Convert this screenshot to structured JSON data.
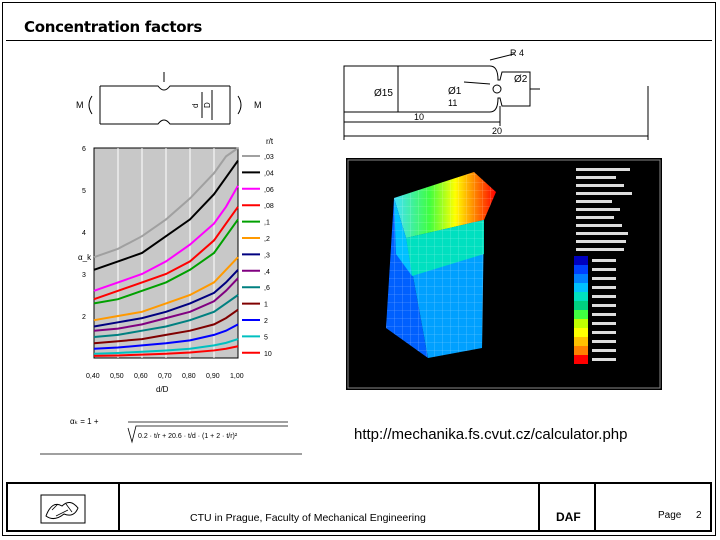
{
  "slide": {
    "title": "Concentration factors",
    "url": "http://mechanika.fs.cvut.cz/calculator.php",
    "footer": {
      "institution": "CTU in Prague, Faculty of Mechanical Engineering",
      "dept": "DAF",
      "page_label": "Page",
      "page_number": "2"
    }
  },
  "shaft_drawing": {
    "labels": {
      "r": "R 4",
      "d2": "Ø2",
      "d15": "Ø15",
      "d11": "Ø1",
      "d11b": "11",
      "dim10": "10",
      "dim20": "20"
    }
  },
  "notch_sketch": {
    "labels": {
      "mleft": "M",
      "mright": "M",
      "d": "d",
      "D": "D"
    }
  },
  "formula_text": {
    "lhs": "αₖ = 1 +",
    "den": "0.2 · t/r + 20.6 · t/d · (1 + 2 · t/r)²"
  },
  "chart_data": {
    "type": "line",
    "xlabel": "d/D",
    "ylabel": "α_k",
    "legend_title": "r/t",
    "xlim": [
      0.4,
      1.0
    ],
    "ylim": [
      1,
      6
    ],
    "x_ticks": [
      "0,40",
      "0,50",
      "0,60",
      "0,70",
      "0,80",
      "0,90",
      "1,00"
    ],
    "y_ticks": [
      "6",
      "5",
      "4",
      "3",
      "2"
    ],
    "x": [
      0.4,
      0.5,
      0.6,
      0.7,
      0.8,
      0.9,
      0.95,
      1.0
    ],
    "series": [
      {
        "name": ",03",
        "color": "#a0a0a0",
        "values": [
          3.4,
          3.6,
          3.9,
          4.3,
          4.8,
          5.4,
          5.8,
          6.0
        ]
      },
      {
        "name": ",04",
        "color": "#000000",
        "values": [
          3.1,
          3.3,
          3.5,
          3.9,
          4.3,
          4.9,
          5.3,
          5.7
        ]
      },
      {
        "name": ",06",
        "color": "#ff00ff",
        "values": [
          2.6,
          2.8,
          3.0,
          3.3,
          3.7,
          4.2,
          4.6,
          5.1
        ]
      },
      {
        "name": ",08",
        "color": "#ff0000",
        "values": [
          2.4,
          2.6,
          2.8,
          3.0,
          3.3,
          3.8,
          4.2,
          4.6
        ]
      },
      {
        "name": ",1",
        "color": "#00a000",
        "values": [
          2.3,
          2.4,
          2.6,
          2.8,
          3.1,
          3.5,
          3.9,
          4.3
        ]
      },
      {
        "name": ",2",
        "color": "#ff9900",
        "values": [
          1.9,
          2.0,
          2.1,
          2.3,
          2.5,
          2.8,
          3.1,
          3.4
        ]
      },
      {
        "name": ",3",
        "color": "#000080",
        "values": [
          1.75,
          1.85,
          1.95,
          2.1,
          2.3,
          2.55,
          2.8,
          3.1
        ]
      },
      {
        "name": ",4",
        "color": "#800080",
        "values": [
          1.65,
          1.7,
          1.8,
          1.95,
          2.1,
          2.35,
          2.6,
          2.9
        ]
      },
      {
        "name": ",6",
        "color": "#008080",
        "values": [
          1.5,
          1.55,
          1.65,
          1.75,
          1.9,
          2.1,
          2.3,
          2.5
        ]
      },
      {
        "name": "1",
        "color": "#800000",
        "values": [
          1.35,
          1.4,
          1.45,
          1.55,
          1.65,
          1.8,
          1.95,
          2.15
        ]
      },
      {
        "name": "2",
        "color": "#0000ff",
        "values": [
          1.22,
          1.25,
          1.3,
          1.35,
          1.42,
          1.55,
          1.65,
          1.8
        ]
      },
      {
        "name": "5",
        "color": "#00c0c0",
        "values": [
          1.1,
          1.12,
          1.15,
          1.18,
          1.22,
          1.3,
          1.36,
          1.45
        ]
      },
      {
        "name": "10",
        "color": "#ff0000",
        "values": [
          1.05,
          1.06,
          1.08,
          1.1,
          1.13,
          1.18,
          1.22,
          1.28
        ]
      }
    ]
  },
  "fem_image": {
    "color_scale": [
      "#0000c0",
      "#0040ff",
      "#0080ff",
      "#00c0ff",
      "#00e0c0",
      "#00d080",
      "#40ff40",
      "#c0ff00",
      "#ffff00",
      "#ffc000",
      "#ff8000",
      "#ff0000"
    ]
  }
}
